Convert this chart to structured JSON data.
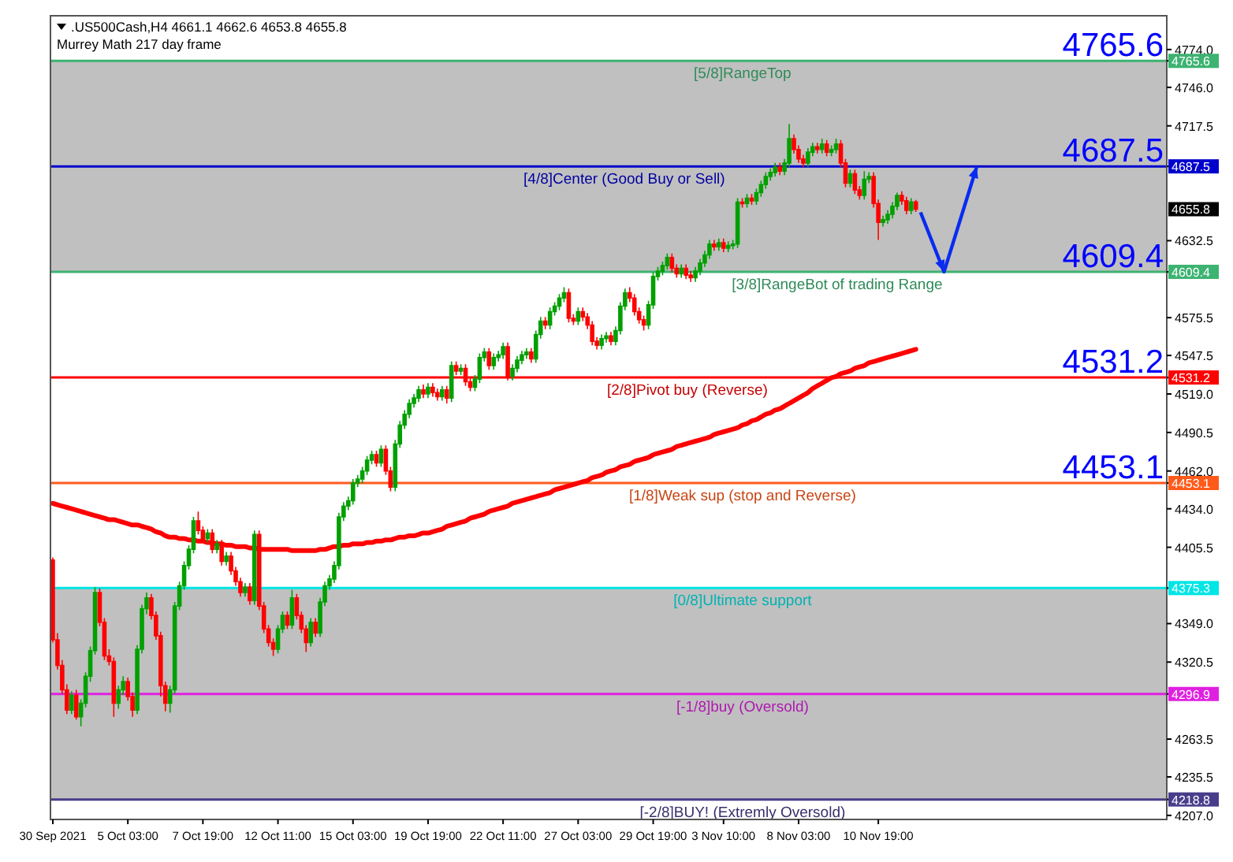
{
  "chart_data": {
    "type": "candlestick",
    "title": ".US500Cash,H4  4661.1 4662.6 4653.8 4655.8",
    "subtitle": "Murrey Math 217 day frame",
    "categories": [
      "30 Sep 2021",
      null,
      null,
      null,
      null,
      null,
      null,
      null,
      null,
      null,
      null,
      null,
      null,
      null,
      null,
      null,
      "5 Oct 03:00",
      null,
      null,
      null,
      null,
      null,
      null,
      null,
      null,
      null,
      null,
      null,
      null,
      null,
      null,
      null,
      "7 Oct 19:00",
      null,
      null,
      null,
      null,
      null,
      null,
      null,
      null,
      null,
      null,
      null,
      null,
      null,
      null,
      null,
      "12 Oct 11:00",
      null,
      null,
      null,
      null,
      null,
      null,
      null,
      null,
      null,
      null,
      null,
      null,
      null,
      null,
      null,
      "15 Oct 03:00",
      null,
      null,
      null,
      null,
      null,
      null,
      null,
      null,
      null,
      null,
      null,
      null,
      null,
      null,
      null,
      "19 Oct 19:00",
      null,
      null,
      null,
      null,
      null,
      null,
      null,
      null,
      null,
      null,
      null,
      null,
      null,
      null,
      null,
      "22 Oct 11:00",
      null,
      null,
      null,
      null,
      null,
      null,
      null,
      null,
      null,
      null,
      null,
      null,
      null,
      null,
      null,
      "27 Oct 03:00",
      null,
      null,
      null,
      null,
      null,
      null,
      null,
      null,
      null,
      null,
      null,
      null,
      null,
      null,
      null,
      "29 Oct 19:00",
      null,
      null,
      null,
      null,
      null,
      null,
      null,
      null,
      null,
      null,
      null,
      null,
      null,
      null,
      "3 Nov 10:00",
      null,
      null,
      null,
      null,
      null,
      null,
      null,
      null,
      null,
      null,
      null,
      null,
      null,
      null,
      null,
      "8 Nov 03:00",
      null,
      null,
      null,
      null,
      null,
      null,
      null,
      null,
      null,
      null,
      null,
      null,
      null,
      null,
      null,
      null,
      "10 Nov 19:00",
      null,
      null,
      null,
      null,
      null,
      null,
      null,
      null
    ],
    "ylim": [
      4204,
      4799
    ],
    "yticks": [
      {
        "value": 4774,
        "label": "4774.0"
      },
      {
        "value": 4765.6,
        "label": "4765.6"
      },
      {
        "value": 4746,
        "label": "4746.0"
      },
      {
        "value": 4717.5,
        "label": "4717.5"
      },
      {
        "value": 4687.5,
        "label": "4687.5"
      },
      {
        "value": 4632.5,
        "label": "4632.5"
      },
      {
        "value": 4609.4,
        "label": "4609.4"
      },
      {
        "value": 4575.5,
        "label": "4575.5"
      },
      {
        "value": 4547.5,
        "label": "4547.5"
      },
      {
        "value": 4531.2,
        "label": "4531.2"
      },
      {
        "value": 4519,
        "label": "4519.0"
      },
      {
        "value": 4490.5,
        "label": "4490.5"
      },
      {
        "value": 4462,
        "label": "4462.0"
      },
      {
        "value": 4453.1,
        "label": "4453.1"
      },
      {
        "value": 4434,
        "label": "4434.0"
      },
      {
        "value": 4405.5,
        "label": "4405.5"
      },
      {
        "value": 4375.3,
        "label": "4375.3"
      },
      {
        "value": 4349,
        "label": "4349.0"
      },
      {
        "value": 4320.5,
        "label": "4320.5"
      },
      {
        "value": 4296.9,
        "label": "4296.9"
      },
      {
        "value": 4263.5,
        "label": "4263.5"
      },
      {
        "value": 4235.5,
        "label": "4235.5"
      },
      {
        "value": 4218.8,
        "label": "4218.8"
      },
      {
        "value": 4207,
        "label": "4207.0"
      }
    ],
    "bands": [
      {
        "axis": "y",
        "from": 4609.4,
        "to": 4765.6,
        "color": "#c0c0c0"
      },
      {
        "axis": "y",
        "from": 4218.8,
        "to": 4375.3,
        "color": "#c0c0c0"
      }
    ],
    "ref_lines": [
      {
        "axis": "y",
        "value": 4765.6,
        "label": "[5/8]RangeTop",
        "color": "#3cb371"
      },
      {
        "axis": "y",
        "value": 4687.5,
        "label": "[4/8]Center (Good Buy or Sell)",
        "color": "#0000cd"
      },
      {
        "axis": "y",
        "value": 4609.4,
        "label": "[3/8]RangeBot of trading Range",
        "color": "#3cb371"
      },
      {
        "axis": "y",
        "value": 4531.2,
        "label": "[2/8]Pivot buy (Reverse)",
        "color": "#ff0000"
      },
      {
        "axis": "y",
        "value": 4453.1,
        "label": "[1/8]Weak sup (stop and Reverse)",
        "color": "#ff5a1a"
      },
      {
        "axis": "y",
        "value": 4375.3,
        "label": "[0/8]Ultimate support",
        "color": "#00e5e5"
      },
      {
        "axis": "y",
        "value": 4296.9,
        "label": "[-1/8]buy (Oversold)",
        "color": "#e020e0"
      },
      {
        "axis": "y",
        "value": 4218.8,
        "label": "[-2/8]BUY! (Extremly Oversold)",
        "color": "#483d8b"
      }
    ],
    "annotations": [
      {
        "text": "4765.6",
        "y": 4765.6
      },
      {
        "text": "4687.5",
        "y": 4687.5
      },
      {
        "text": "4609.4",
        "y": 4609.4
      },
      {
        "text": "4531.2",
        "y": 4531.2
      },
      {
        "text": "4453.1",
        "y": 4453.1
      },
      "4655.8"
    ],
    "series": [
      {
        "type": "line",
        "color": "#ff0000",
        "values": [
          4438,
          4437,
          4436,
          4435,
          4434,
          4433,
          4432,
          4431,
          4430,
          4429,
          4428,
          4427,
          4426,
          4426,
          4425,
          4424,
          4423,
          4422,
          4422,
          4421,
          4420,
          4419,
          4417,
          4416,
          4414,
          4413,
          4413,
          4412,
          4412,
          4411,
          4411,
          4410,
          4410,
          4409,
          4409,
          4408,
          4408,
          4407,
          4407,
          4406,
          4406,
          4406,
          4405,
          4405,
          4404,
          4404,
          4404,
          4404,
          4404,
          4404,
          4404,
          4403,
          4403,
          4403,
          4403,
          4403,
          4403,
          4404,
          4404,
          4405,
          4406,
          4406,
          4407,
          4407,
          4408,
          4408,
          4408,
          4409,
          4409,
          4410,
          4410,
          4411,
          4411,
          4412,
          4413,
          4413,
          4414,
          4414,
          4415,
          4416,
          4416,
          4417,
          4418,
          4419,
          4421,
          4422,
          4423,
          4424,
          4425,
          4427,
          4428,
          4429,
          4430,
          4432,
          4433,
          4434,
          4435,
          4436,
          4438,
          4439,
          4440,
          4441,
          4442,
          4443,
          4444,
          4445,
          4446,
          4448,
          4449,
          4450,
          4451,
          4452,
          4453,
          4454,
          4455,
          4457,
          4458,
          4459,
          4461,
          4462,
          4463,
          4465,
          4466,
          4467,
          4469,
          4470,
          4471,
          4472,
          4474,
          4475,
          4476,
          4477,
          4478,
          4480,
          4481,
          4482,
          4483,
          4484,
          4485,
          4486,
          4487,
          4489,
          4490,
          4491,
          4492,
          4493,
          4494,
          4496,
          4497,
          4499,
          4500,
          4502,
          4504,
          4505,
          4507,
          4508,
          4510,
          4512,
          4514,
          4516,
          4518,
          4520,
          4523,
          4525,
          4527,
          4529,
          4531,
          4532,
          4534,
          4535,
          4536,
          4538,
          4539,
          4540,
          4542,
          4543,
          4544,
          4545,
          4546,
          4547,
          4548,
          4549,
          4550,
          4551,
          4552
        ]
      },
      {
        "ohlc": [
          [
            4396,
            4398,
            4335,
            4337
          ],
          [
            4337,
            4342,
            4315,
            4318
          ],
          [
            4318,
            4322,
            4297,
            4300
          ],
          [
            4300,
            4304,
            4282,
            4285
          ],
          [
            4285,
            4299,
            4282,
            4296
          ],
          [
            4296,
            4300,
            4278,
            4280
          ],
          [
            4280,
            4293,
            4273,
            4290
          ],
          [
            4290,
            4313,
            4287,
            4310
          ],
          [
            4310,
            4332,
            4306,
            4329
          ],
          [
            4329,
            4376,
            4326,
            4372
          ],
          [
            4372,
            4375,
            4347,
            4350
          ],
          [
            4350,
            4353,
            4322,
            4325
          ],
          [
            4325,
            4330,
            4318,
            4321
          ],
          [
            4321,
            4324,
            4280,
            4290
          ],
          [
            4290,
            4303,
            4286,
            4300
          ],
          [
            4300,
            4310,
            4296,
            4306
          ],
          [
            4306,
            4309,
            4292,
            4295
          ],
          [
            4295,
            4298,
            4280,
            4285
          ],
          [
            4285,
            4333,
            4282,
            4330
          ],
          [
            4330,
            4363,
            4327,
            4360
          ],
          [
            4360,
            4372,
            4356,
            4368
          ],
          [
            4368,
            4371,
            4352,
            4355
          ],
          [
            4355,
            4358,
            4337,
            4340
          ],
          [
            4340,
            4343,
            4295,
            4303
          ],
          [
            4303,
            4306,
            4284,
            4290
          ],
          [
            4290,
            4303,
            4283,
            4300
          ],
          [
            4300,
            4365,
            4297,
            4362
          ],
          [
            4362,
            4380,
            4359,
            4377
          ],
          [
            4377,
            4395,
            4374,
            4392
          ],
          [
            4392,
            4407,
            4389,
            4404
          ],
          [
            4404,
            4428,
            4401,
            4425
          ],
          [
            4425,
            4432,
            4415,
            4418
          ],
          [
            4418,
            4421,
            4409,
            4412
          ],
          [
            4412,
            4419,
            4409,
            4416
          ],
          [
            4416,
            4419,
            4401,
            4404
          ],
          [
            4404,
            4411,
            4401,
            4408
          ],
          [
            4408,
            4411,
            4392,
            4395
          ],
          [
            4395,
            4402,
            4392,
            4399
          ],
          [
            4399,
            4402,
            4385,
            4388
          ],
          [
            4388,
            4391,
            4377,
            4380
          ],
          [
            4380,
            4383,
            4369,
            4372
          ],
          [
            4372,
            4379,
            4369,
            4376
          ],
          [
            4376,
            4379,
            4363,
            4366
          ],
          [
            4366,
            4418,
            4363,
            4415
          ],
          [
            4415,
            4418,
            4359,
            4362
          ],
          [
            4362,
            4365,
            4342,
            4345
          ],
          [
            4345,
            4348,
            4332,
            4335
          ],
          [
            4335,
            4338,
            4325,
            4330
          ],
          [
            4330,
            4348,
            4327,
            4345
          ],
          [
            4345,
            4358,
            4342,
            4355
          ],
          [
            4355,
            4358,
            4345,
            4348
          ],
          [
            4348,
            4374,
            4345,
            4368
          ],
          [
            4368,
            4371,
            4352,
            4355
          ],
          [
            4355,
            4358,
            4342,
            4345
          ],
          [
            4345,
            4348,
            4328,
            4335
          ],
          [
            4335,
            4353,
            4332,
            4350
          ],
          [
            4350,
            4353,
            4339,
            4342
          ],
          [
            4342,
            4368,
            4339,
            4365
          ],
          [
            4365,
            4380,
            4362,
            4377
          ],
          [
            4377,
            4385,
            4374,
            4382
          ],
          [
            4382,
            4395,
            4379,
            4392
          ],
          [
            4392,
            4431,
            4389,
            4428
          ],
          [
            4428,
            4439,
            4425,
            4436
          ],
          [
            4436,
            4443,
            4433,
            4440
          ],
          [
            4440,
            4456,
            4437,
            4453
          ],
          [
            4453,
            4459,
            4450,
            4456
          ],
          [
            4456,
            4465,
            4453,
            4462
          ],
          [
            4462,
            4473,
            4459,
            4470
          ],
          [
            4470,
            4477,
            4467,
            4474
          ],
          [
            4474,
            4477,
            4465,
            4468
          ],
          [
            4468,
            4481,
            4465,
            4478
          ],
          [
            4478,
            4481,
            4459,
            4462
          ],
          [
            4462,
            4465,
            4447,
            4450
          ],
          [
            4450,
            4485,
            4447,
            4482
          ],
          [
            4482,
            4499,
            4479,
            4496
          ],
          [
            4496,
            4507,
            4493,
            4504
          ],
          [
            4504,
            4515,
            4501,
            4512
          ],
          [
            4512,
            4519,
            4509,
            4516
          ],
          [
            4516,
            4525,
            4513,
            4522
          ],
          [
            4522,
            4526,
            4516,
            4519
          ],
          [
            4519,
            4527,
            4516,
            4524
          ],
          [
            4524,
            4527,
            4517,
            4520
          ],
          [
            4520,
            4523,
            4514,
            4517
          ],
          [
            4517,
            4525,
            4514,
            4522
          ],
          [
            4522,
            4525,
            4512,
            4516
          ],
          [
            4516,
            4543,
            4513,
            4540
          ],
          [
            4540,
            4543,
            4533,
            4536
          ],
          [
            4536,
            4541,
            4533,
            4538
          ],
          [
            4538,
            4541,
            4525,
            4528
          ],
          [
            4528,
            4531,
            4521,
            4524
          ],
          [
            4524,
            4533,
            4521,
            4530
          ],
          [
            4530,
            4549,
            4527,
            4546
          ],
          [
            4546,
            4553,
            4543,
            4550
          ],
          [
            4550,
            4553,
            4537,
            4540
          ],
          [
            4540,
            4549,
            4537,
            4546
          ],
          [
            4546,
            4551,
            4543,
            4548
          ],
          [
            4548,
            4557,
            4545,
            4554
          ],
          [
            4554,
            4557,
            4529,
            4532
          ],
          [
            4532,
            4541,
            4529,
            4538
          ],
          [
            4538,
            4547,
            4535,
            4544
          ],
          [
            4544,
            4551,
            4541,
            4548
          ],
          [
            4548,
            4553,
            4545,
            4550
          ],
          [
            4550,
            4553,
            4542,
            4545
          ],
          [
            4545,
            4566,
            4542,
            4563
          ],
          [
            4563,
            4576,
            4560,
            4573
          ],
          [
            4573,
            4576,
            4567,
            4570
          ],
          [
            4570,
            4583,
            4567,
            4580
          ],
          [
            4580,
            4587,
            4577,
            4584
          ],
          [
            4584,
            4593,
            4581,
            4590
          ],
          [
            4590,
            4598,
            4587,
            4594
          ],
          [
            4594,
            4597,
            4572,
            4575
          ],
          [
            4575,
            4578,
            4570,
            4573
          ],
          [
            4573,
            4583,
            4570,
            4580
          ],
          [
            4580,
            4583,
            4573,
            4576
          ],
          [
            4576,
            4579,
            4567,
            4570
          ],
          [
            4570,
            4573,
            4555,
            4558
          ],
          [
            4558,
            4561,
            4552,
            4555
          ],
          [
            4555,
            4563,
            4552,
            4560
          ],
          [
            4560,
            4565,
            4557,
            4562
          ],
          [
            4562,
            4565,
            4555,
            4558
          ],
          [
            4558,
            4569,
            4555,
            4566
          ],
          [
            4566,
            4587,
            4563,
            4584
          ],
          [
            4584,
            4597,
            4581,
            4594
          ],
          [
            4594,
            4598,
            4587,
            4590
          ],
          [
            4590,
            4593,
            4577,
            4580
          ],
          [
            4580,
            4583,
            4571,
            4574
          ],
          [
            4574,
            4577,
            4566,
            4570
          ],
          [
            4570,
            4588,
            4567,
            4585
          ],
          [
            4585,
            4609,
            4582,
            4606
          ],
          [
            4606,
            4613,
            4603,
            4610
          ],
          [
            4610,
            4617,
            4607,
            4614
          ],
          [
            4614,
            4623,
            4611,
            4620
          ],
          [
            4620,
            4623,
            4609,
            4612
          ],
          [
            4612,
            4615,
            4605,
            4608
          ],
          [
            4608,
            4615,
            4605,
            4612
          ],
          [
            4612,
            4615,
            4604,
            4607
          ],
          [
            4607,
            4610,
            4602,
            4605
          ],
          [
            4605,
            4613,
            4602,
            4610
          ],
          [
            4610,
            4619,
            4607,
            4616
          ],
          [
            4616,
            4625,
            4613,
            4622
          ],
          [
            4622,
            4633,
            4619,
            4630
          ],
          [
            4630,
            4633,
            4625,
            4628
          ],
          [
            4628,
            4634,
            4625,
            4631
          ],
          [
            4631,
            4634,
            4624,
            4627
          ],
          [
            4627,
            4632,
            4624,
            4629
          ],
          [
            4629,
            4633,
            4626,
            4630
          ],
          [
            4630,
            4664,
            4627,
            4661
          ],
          [
            4661,
            4664,
            4657,
            4660
          ],
          [
            4660,
            4667,
            4657,
            4664
          ],
          [
            4664,
            4667,
            4659,
            4662
          ],
          [
            4662,
            4671,
            4659,
            4668
          ],
          [
            4668,
            4677,
            4665,
            4674
          ],
          [
            4674,
            4683,
            4671,
            4680
          ],
          [
            4680,
            4686,
            4677,
            4683
          ],
          [
            4683,
            4690,
            4680,
            4687
          ],
          [
            4687,
            4690,
            4681,
            4684
          ],
          [
            4684,
            4693,
            4681,
            4690
          ],
          [
            4690,
            4719,
            4687,
            4708
          ],
          [
            4708,
            4711,
            4697,
            4700
          ],
          [
            4700,
            4703,
            4690,
            4693
          ],
          [
            4693,
            4696,
            4687,
            4690
          ],
          [
            4690,
            4701,
            4687,
            4698
          ],
          [
            4698,
            4705,
            4695,
            4702
          ],
          [
            4702,
            4705,
            4697,
            4700
          ],
          [
            4700,
            4708,
            4697,
            4704
          ],
          [
            4704,
            4707,
            4695,
            4698
          ],
          [
            4698,
            4703,
            4695,
            4700
          ],
          [
            4700,
            4708,
            4697,
            4704
          ],
          [
            4704,
            4707,
            4687,
            4690
          ],
          [
            4690,
            4693,
            4672,
            4675
          ],
          [
            4675,
            4685,
            4672,
            4682
          ],
          [
            4682,
            4685,
            4667,
            4670
          ],
          [
            4670,
            4673,
            4663,
            4666
          ],
          [
            4666,
            4684,
            4663,
            4678
          ],
          [
            4678,
            4683,
            4675,
            4680
          ],
          [
            4680,
            4683,
            4657,
            4660
          ],
          [
            4660,
            4663,
            4633,
            4646
          ],
          [
            4646,
            4651,
            4643,
            4648
          ],
          [
            4648,
            4655,
            4645,
            4652
          ],
          [
            4652,
            4661,
            4649,
            4658
          ],
          [
            4658,
            4668,
            4655,
            4666
          ],
          [
            4666,
            4669,
            4659,
            4662
          ],
          [
            4662,
            4665,
            4652,
            4655
          ],
          [
            4655,
            4664,
            4652,
            4661.1
          ],
          [
            4661.1,
            4662.6,
            4653.8,
            4655.8
          ]
        ]
      }
    ]
  }
}
